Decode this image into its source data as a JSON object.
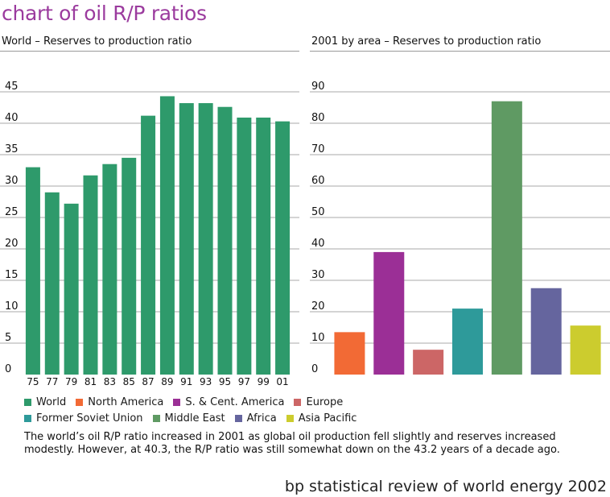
{
  "page_title": "chart of oil R/P ratios",
  "footer": "bp statistical review of world energy 2002",
  "caption": "The world’s oil R/P ratio increased in 2001 as global oil production fell slightly and reserves increased modestly. However, at 40.3, the R/P ratio was still somewhat down on the 43.2 years of a decade ago.",
  "legend": {
    "row1": [
      {
        "label": "World",
        "color": "#2e9a6b"
      },
      {
        "label": "North America",
        "color": "#f26a35"
      },
      {
        "label": "S. & Cent. America",
        "color": "#9b2f96"
      },
      {
        "label": "Europe",
        "color": "#cc6666"
      }
    ],
    "row2": [
      {
        "label": "Former Soviet Union",
        "color": "#2e9a9a"
      },
      {
        "label": "Middle East",
        "color": "#5f9a63"
      },
      {
        "label": "Africa",
        "color": "#65659e"
      },
      {
        "label": "Asia Pacific",
        "color": "#cccc2e"
      }
    ]
  },
  "chart_data": [
    {
      "type": "bar",
      "title": "World – Reserves to production ratio",
      "categories": [
        "75",
        "77",
        "79",
        "81",
        "83",
        "85",
        "87",
        "89",
        "91",
        "93",
        "95",
        "97",
        "99",
        "01"
      ],
      "values": [
        33.0,
        29.0,
        27.2,
        31.7,
        33.5,
        34.5,
        41.2,
        44.3,
        43.2,
        43.2,
        42.6,
        40.9,
        40.9,
        40.3
      ],
      "ylim": [
        0,
        45
      ],
      "yticks": [
        0,
        5,
        10,
        15,
        20,
        25,
        30,
        35,
        40,
        45
      ],
      "color": "#2e9a6b",
      "grid": true
    },
    {
      "type": "bar",
      "title": "2001 by area – Reserves to production ratio",
      "categories": [
        "North America",
        "S. & Cent. America",
        "Europe",
        "Former Soviet Union",
        "Middle East",
        "Africa",
        "Asia Pacific"
      ],
      "values": [
        13.5,
        39.0,
        7.9,
        21.0,
        87.0,
        27.5,
        15.6
      ],
      "colors": [
        "#f26a35",
        "#9b2f96",
        "#cc6666",
        "#2e9a9a",
        "#5f9a63",
        "#65659e",
        "#cccc2e"
      ],
      "ylim": [
        0,
        90
      ],
      "yticks": [
        0,
        10,
        20,
        30,
        40,
        50,
        60,
        70,
        80,
        90
      ],
      "grid": true
    }
  ]
}
